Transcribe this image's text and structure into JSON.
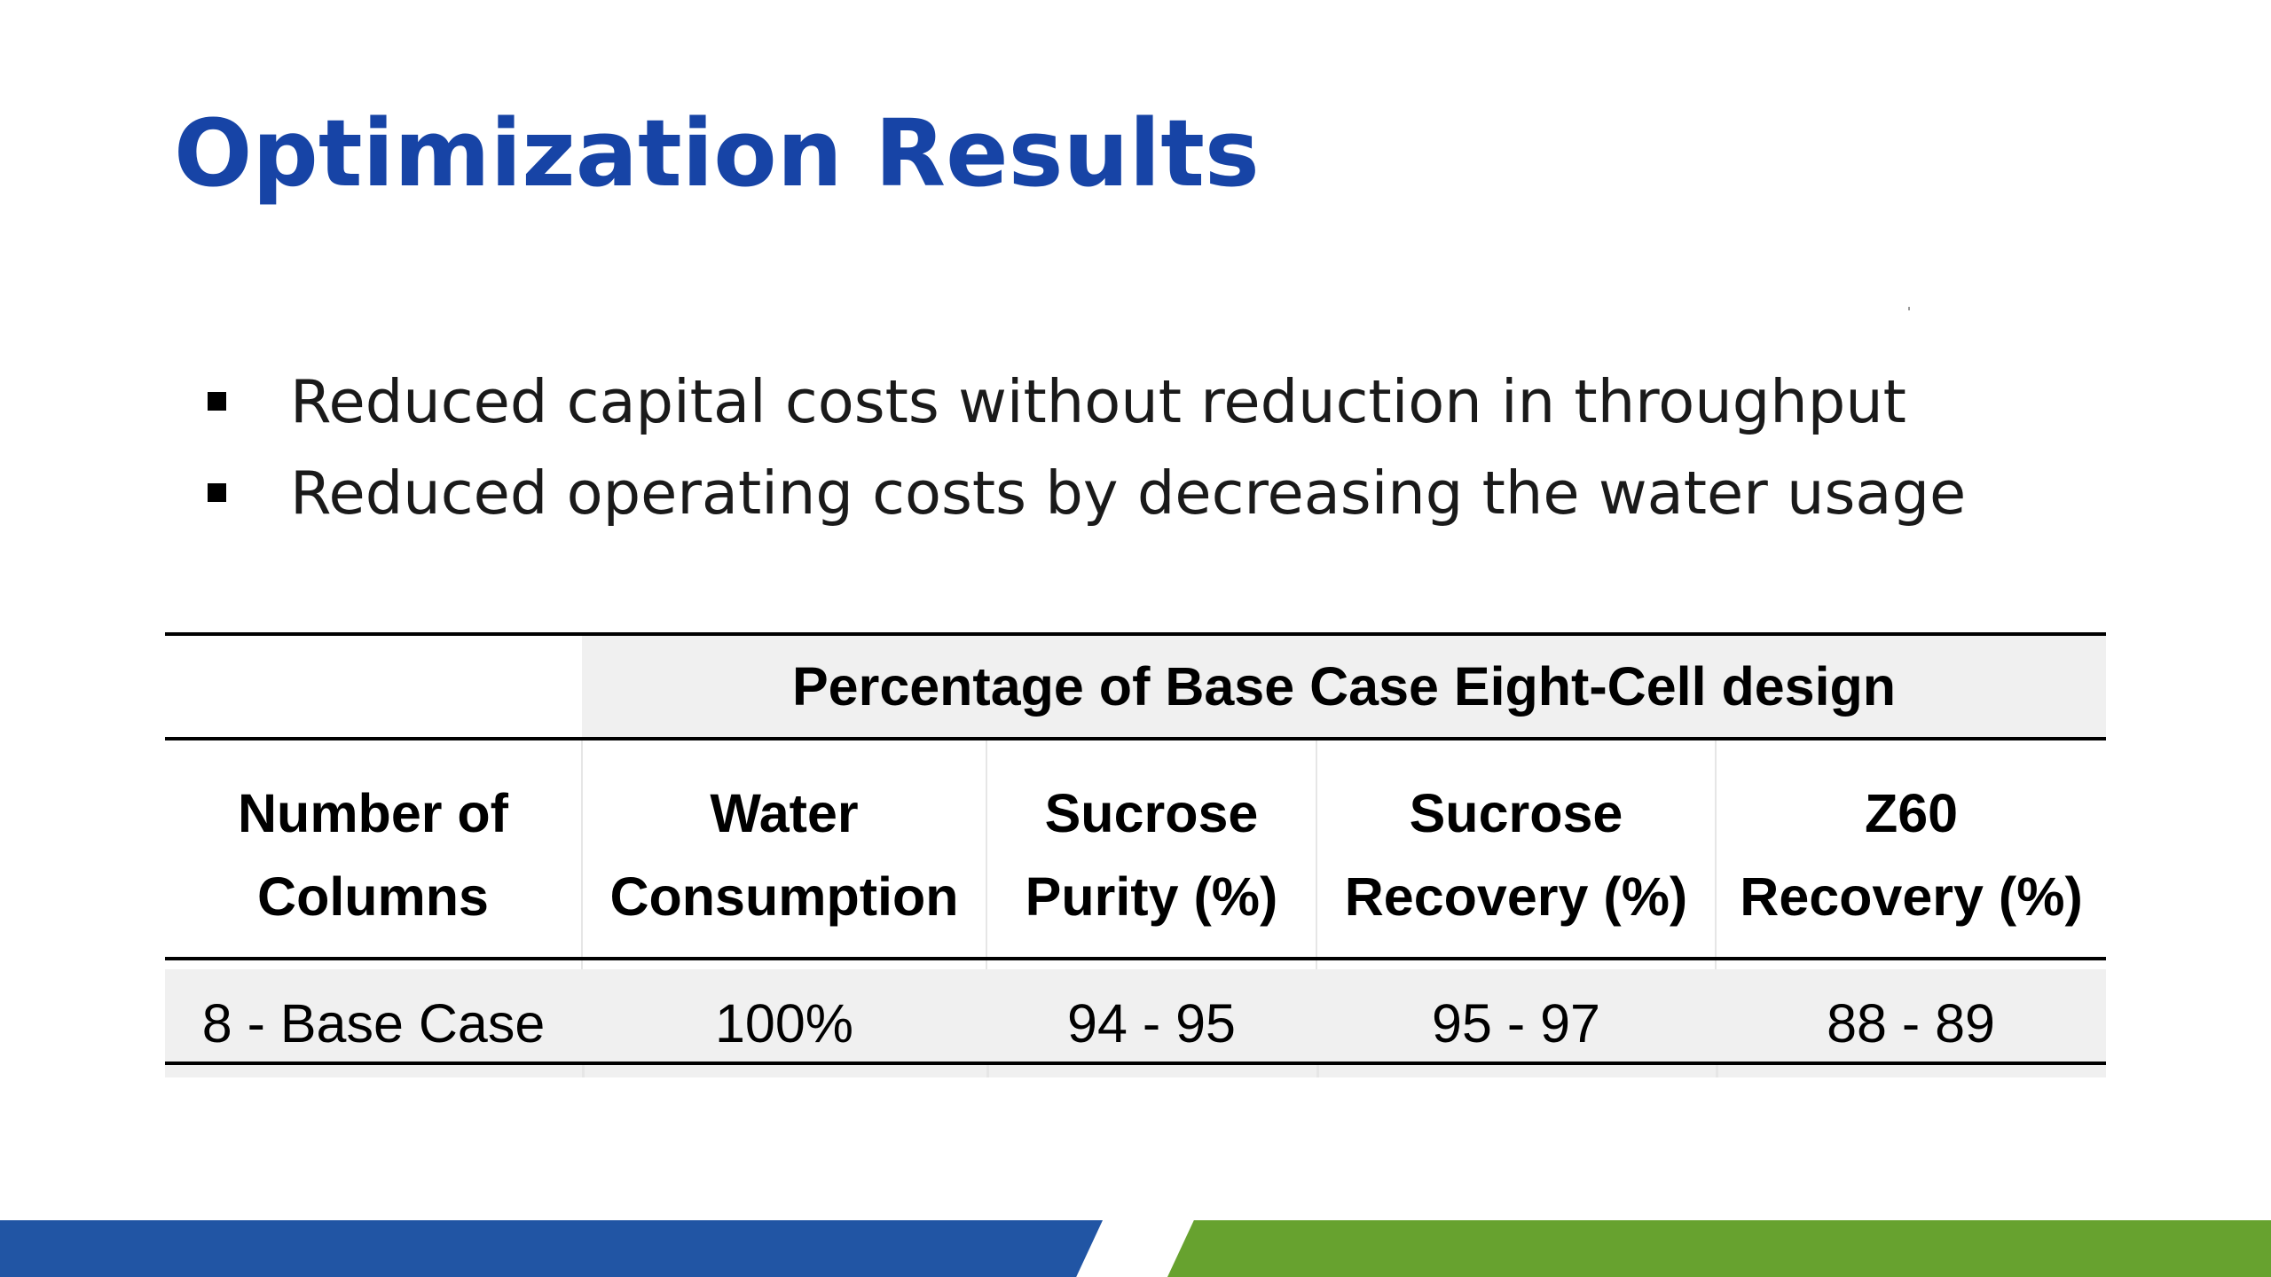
{
  "slide": {
    "title": "Optimization Results"
  },
  "bullets": [
    "Reduced capital costs without reduction in throughput",
    "Reduced operating costs by decreasing the water usage"
  ],
  "table": {
    "group_header": "Percentage of Base Case Eight-Cell design",
    "columns": [
      [
        "Number of",
        "Columns"
      ],
      [
        "Water",
        "Consumption"
      ],
      [
        "Sucrose",
        "Purity (%)"
      ],
      [
        "Sucrose",
        "Recovery (%)"
      ],
      [
        "Z60",
        "Recovery (%)"
      ]
    ],
    "rows": [
      [
        "8 - Base Case",
        "100%",
        "94 - 95",
        "95 - 97",
        "88 - 89"
      ]
    ]
  },
  "colors": {
    "title": "#1744a6",
    "footer_blue": "#2155a4",
    "footer_green": "#67a22f",
    "table_shading": "#f0f0f0"
  }
}
